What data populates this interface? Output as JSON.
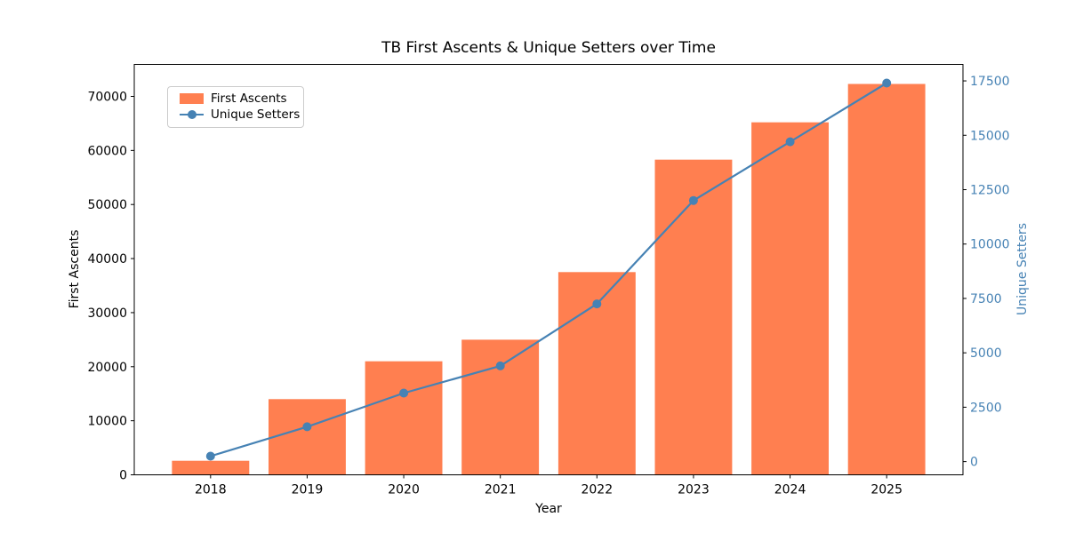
{
  "chart_data": {
    "type": "bar+line",
    "title": "TB First Ascents & Unique Setters over Time",
    "xlabel": "Year",
    "categories": [
      "2018",
      "2019",
      "2020",
      "2021",
      "2022",
      "2023",
      "2024",
      "2025"
    ],
    "series": [
      {
        "name": "First Ascents",
        "type": "bar",
        "axis": "left",
        "color": "#FF7F50",
        "values": [
          2600,
          14000,
          21000,
          25000,
          37500,
          58300,
          65200,
          72300
        ]
      },
      {
        "name": "Unique Setters",
        "type": "line",
        "axis": "right",
        "color": "#4682B4",
        "marker": "circle",
        "values": [
          250,
          1600,
          3150,
          4400,
          7250,
          12000,
          14700,
          17400
        ]
      }
    ],
    "left_axis": {
      "label": "First Ascents",
      "ticks": [
        0,
        10000,
        20000,
        30000,
        40000,
        50000,
        60000,
        70000
      ],
      "color": "#000000"
    },
    "right_axis": {
      "label": "Unique Setters",
      "ticks": [
        0,
        2500,
        5000,
        7500,
        10000,
        12500,
        15000,
        17500
      ],
      "color": "#4682B4"
    },
    "legend": {
      "position": "upper left",
      "items": [
        "First Ascents",
        "Unique Setters"
      ]
    },
    "grid": false,
    "bar_width": 0.8,
    "spine_color": "#000000"
  }
}
